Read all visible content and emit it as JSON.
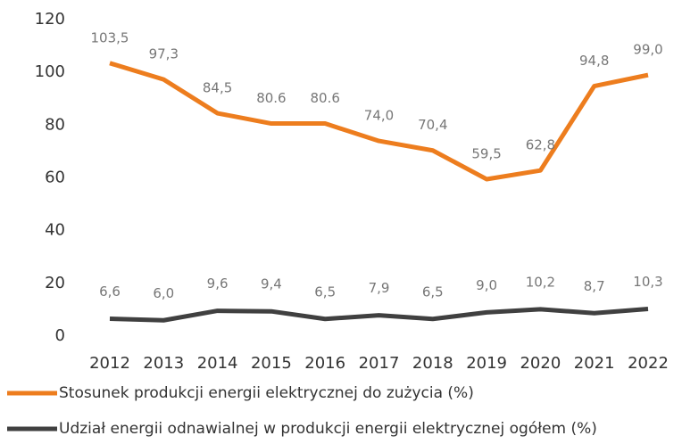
{
  "chart_data": {
    "type": "line",
    "categories": [
      "2012",
      "2013",
      "2014",
      "2015",
      "2016",
      "2017",
      "2018",
      "2019",
      "2020",
      "2021",
      "2022"
    ],
    "series": [
      {
        "name": "Stosunek produkcji energii elektrycznej do zużycia (%)",
        "color": "#ed7d1e",
        "values": [
          103.5,
          97.3,
          84.5,
          80.6,
          80.6,
          74.0,
          70.4,
          59.5,
          62.8,
          94.8,
          99.0
        ],
        "value_labels": [
          "103,5",
          "97,3",
          "84,5",
          "80.6",
          "80.6",
          "74,0",
          "70,4",
          "59,5",
          "62,8",
          "94,8",
          "99,0"
        ]
      },
      {
        "name": "Udział energii odnawialnej w produkcji energii elektrycznej ogółem (%)",
        "color": "#404040",
        "values": [
          6.6,
          6.0,
          9.6,
          9.4,
          6.5,
          7.9,
          6.5,
          9.0,
          10.2,
          8.7,
          10.3
        ],
        "value_labels": [
          "6,6",
          "6,0",
          "9,6",
          "9,4",
          "6,5",
          "7,9",
          "6,5",
          "9,0",
          "10,2",
          "8,7",
          "10,3"
        ]
      }
    ],
    "ylim": [
      0,
      120
    ],
    "yticks": [
      0,
      20,
      40,
      60,
      80,
      100,
      120
    ],
    "grid": false,
    "legend": "bottom"
  }
}
